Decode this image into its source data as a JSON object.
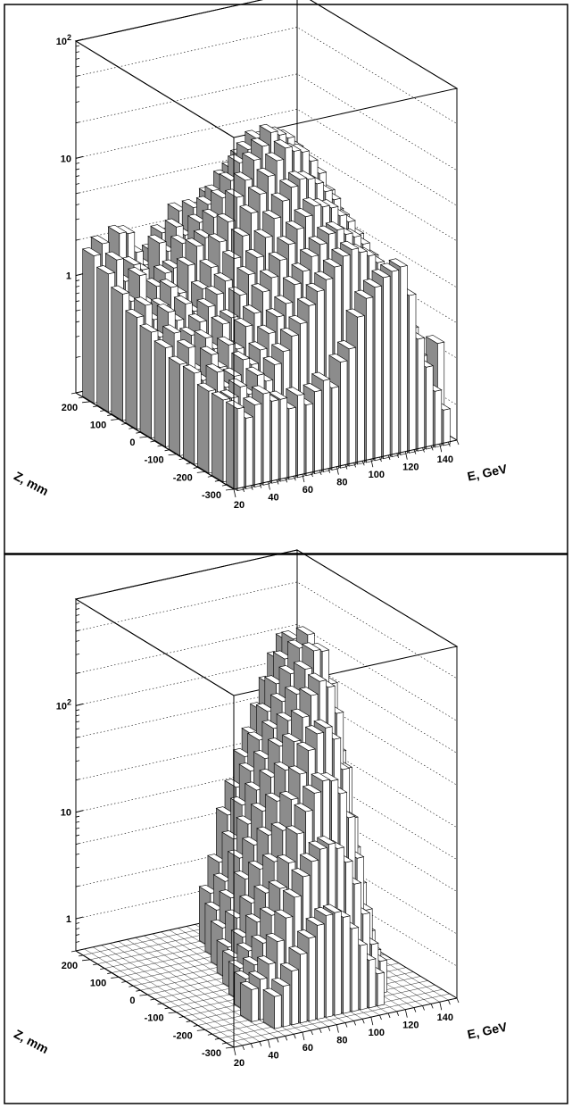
{
  "chart_data": [
    {
      "type": "lego3d",
      "panel": "top",
      "z_scale": "log",
      "xlabel": "E, GeV",
      "ylabel": "Z, mm",
      "x_ticks": [
        "20",
        "40",
        "60",
        "80",
        "100",
        "120",
        "140"
      ],
      "y_ticks": [
        "-300",
        "-200",
        "-100",
        "0",
        "100",
        "200"
      ],
      "z_ticks": [
        {
          "value": 1,
          "mant": "1",
          "exp": ""
        },
        {
          "value": 10,
          "mant": "10",
          "exp": ""
        },
        {
          "value": 100,
          "mant": "10",
          "exp": "2"
        }
      ],
      "xlim": [
        20,
        150
      ],
      "ylim": [
        -300,
        250
      ],
      "zlim": [
        0.1,
        100
      ],
      "grid": true,
      "legend": "none",
      "colors": {
        "bar_front": "#ffffff",
        "bar_side": "#8c8c8c",
        "bar_top": "#ffffff",
        "edge": "#000000"
      },
      "rows": [
        {
          "z": 210,
          "values": [
            1.8,
            2.2,
            1.3,
            2.5,
            2.4,
            1.6,
            1.2,
            1.5,
            2.1,
            1.9,
            3.0,
            2.4,
            2.0,
            1.6,
            1.8,
            2.2,
            2.8,
            3.4,
            3.0,
            2.5,
            2.0,
            1.6,
            1.2,
            0.0,
            0.0,
            0.0
          ]
        },
        {
          "z": 160,
          "values": [
            1.5,
            1.9,
            1.2,
            1.6,
            1.4,
            1.0,
            2.2,
            1.8,
            2.8,
            2.3,
            3.8,
            3.5,
            4.5,
            3.2,
            3.6,
            4.8,
            4.4,
            5.5,
            4.8,
            3.8,
            2.6,
            1.8,
            1.3,
            0.8,
            0.0,
            0.0
          ]
        },
        {
          "z": 110,
          "values": [
            1.2,
            1.0,
            1.6,
            0.9,
            1.2,
            1.5,
            1.6,
            2.5,
            2.2,
            3.5,
            4.8,
            5.8,
            7.5,
            8.5,
            10.5,
            9.5,
            10.8,
            9.0,
            8.0,
            5.5,
            3.5,
            2.4,
            1.6,
            1.0,
            0.5,
            0.0
          ]
        },
        {
          "z": 60,
          "values": [
            0.9,
            1.1,
            0.8,
            1.0,
            1.4,
            1.2,
            2.0,
            2.8,
            3.2,
            4.6,
            6.5,
            8.8,
            12.0,
            15.0,
            18.0,
            17.0,
            16.0,
            14.0,
            10.5,
            7.5,
            5.0,
            3.0,
            1.8,
            1.2,
            0.6,
            0.0
          ]
        },
        {
          "z": 10,
          "values": [
            0.8,
            0.7,
            1.1,
            0.9,
            1.2,
            1.0,
            1.5,
            2.2,
            3.5,
            5.0,
            7.8,
            10.5,
            15.0,
            19.0,
            24.0,
            22.0,
            20.0,
            16.0,
            12.0,
            8.0,
            5.5,
            3.5,
            2.0,
            1.3,
            0.7,
            0.0
          ]
        },
        {
          "z": -40,
          "values": [
            0.7,
            0.9,
            0.6,
            0.8,
            1.0,
            1.3,
            1.6,
            2.0,
            3.0,
            4.5,
            6.8,
            9.5,
            13.0,
            17.0,
            21.0,
            19.0,
            18.0,
            14.5,
            11.0,
            7.5,
            5.0,
            3.2,
            1.8,
            1.1,
            0.6,
            0.0
          ]
        },
        {
          "z": -90,
          "values": [
            0.6,
            0.8,
            0.5,
            0.9,
            0.7,
            1.1,
            1.2,
            1.8,
            2.6,
            3.5,
            5.0,
            7.0,
            9.5,
            12.0,
            13.5,
            13.0,
            11.5,
            9.5,
            7.8,
            5.5,
            3.8,
            2.3,
            1.5,
            0.9,
            0.5,
            0.0
          ]
        },
        {
          "z": -140,
          "values": [
            0.6,
            0.5,
            0.8,
            0.6,
            0.9,
            0.8,
            1.2,
            1.5,
            2.2,
            2.8,
            3.8,
            5.0,
            6.5,
            8.0,
            9.5,
            9.0,
            8.5,
            7.0,
            6.0,
            4.5,
            3.0,
            2.0,
            1.3,
            0.8,
            0.4,
            0.0
          ]
        },
        {
          "z": -190,
          "values": [
            0.5,
            0.7,
            0.5,
            0.6,
            0.8,
            0.7,
            0.9,
            1.2,
            1.6,
            2.0,
            2.8,
            3.5,
            4.5,
            5.5,
            6.5,
            6.8,
            6.0,
            5.5,
            4.6,
            3.5,
            2.5,
            1.6,
            1.0,
            0.6,
            0.0,
            0.0
          ]
        },
        {
          "z": -240,
          "values": [
            0.5,
            0.5,
            0.6,
            0.5,
            0.7,
            0.6,
            0.8,
            1.0,
            1.3,
            1.6,
            2.2,
            2.8,
            3.4,
            4.2,
            5.0,
            5.5,
            5.0,
            4.5,
            3.8,
            3.0,
            2.2,
            1.4,
            0.9,
            0.5,
            0.0,
            0.6
          ]
        },
        {
          "z": -290,
          "values": [
            0.5,
            0.4,
            0.5,
            0.6,
            0.5,
            0.5,
            0.4,
            0.5,
            0.4,
            0.5,
            0.6,
            0.5,
            0.8,
            1.0,
            1.8,
            2.5,
            3.0,
            3.5,
            3.8,
            4.0,
            2.2,
            0.9,
            0.5,
            0.3,
            0.2,
            0.0
          ]
        }
      ]
    },
    {
      "type": "lego3d",
      "panel": "bottom",
      "z_scale": "log",
      "xlabel": "E, GeV",
      "ylabel": "Z, mm",
      "x_ticks": [
        "20",
        "40",
        "60",
        "80",
        "100",
        "120",
        "140"
      ],
      "y_ticks": [
        "-300",
        "-200",
        "-100",
        "0",
        "100",
        "200"
      ],
      "z_ticks": [
        {
          "value": 1,
          "mant": "1",
          "exp": ""
        },
        {
          "value": 10,
          "mant": "10",
          "exp": ""
        },
        {
          "value": 100,
          "mant": "10",
          "exp": "2"
        }
      ],
      "xlim": [
        20,
        150
      ],
      "ylim": [
        -300,
        250
      ],
      "zlim": [
        0.5,
        1000
      ],
      "grid": true,
      "legend": "none",
      "colors": {
        "bar_front": "#ffffff",
        "bar_side": "#8c8c8c",
        "bar_top": "#ffffff",
        "edge": "#000000"
      },
      "rows": [
        {
          "z": 210,
          "values": [
            0,
            0,
            0,
            0,
            0,
            0,
            0,
            0,
            0,
            0,
            0,
            0,
            0,
            0,
            0,
            0,
            0,
            0,
            0,
            0,
            0,
            0,
            0,
            0,
            0,
            0
          ]
        },
        {
          "z": 160,
          "values": [
            0,
            0,
            0,
            0,
            0,
            0,
            0,
            0,
            0,
            0,
            0,
            0,
            1.6,
            3.0,
            8.0,
            14.0,
            26.0,
            40.0,
            65.0,
            110.0,
            180.0,
            260.0,
            160.0,
            40.0,
            4.0,
            0
          ]
        },
        {
          "z": 110,
          "values": [
            0,
            0,
            0,
            0,
            0,
            0,
            0,
            0,
            0,
            0,
            0,
            1.4,
            2.5,
            6.0,
            12.0,
            24.0,
            45.0,
            80.0,
            140.0,
            230.0,
            340.0,
            220.0,
            60.0,
            6.0,
            1.2,
            0
          ]
        },
        {
          "z": 60,
          "values": [
            0,
            0,
            0,
            0,
            0,
            0,
            0,
            0,
            0,
            0,
            1.2,
            2.2,
            5.0,
            10.0,
            20.0,
            38.0,
            70.0,
            120.0,
            210.0,
            350.0,
            450.0,
            300.0,
            80.0,
            8.0,
            1.5,
            0
          ]
        },
        {
          "z": 10,
          "values": [
            0,
            0,
            0,
            0,
            0,
            0,
            0,
            0,
            0,
            1.0,
            1.8,
            4.0,
            8.0,
            16.0,
            32.0,
            60.0,
            100.0,
            170.0,
            280.0,
            400.0,
            380.0,
            180.0,
            40.0,
            5.0,
            1.2,
            0
          ]
        },
        {
          "z": -40,
          "values": [
            0,
            0,
            0,
            0,
            0,
            0,
            0,
            0,
            1.0,
            1.5,
            3.0,
            6.0,
            12.0,
            24.0,
            45.0,
            80.0,
            130.0,
            200.0,
            260.0,
            220.0,
            120.0,
            35.0,
            6.0,
            1.5,
            0,
            0
          ]
        },
        {
          "z": -90,
          "values": [
            0,
            0,
            0,
            0,
            0,
            0,
            0,
            1.0,
            1.4,
            2.5,
            4.5,
            8.5,
            16.0,
            30.0,
            50.0,
            80.0,
            110.0,
            120.0,
            90.0,
            45.0,
            15.0,
            3.5,
            1.2,
            0,
            0,
            0
          ]
        },
        {
          "z": -140,
          "values": [
            0,
            0,
            0,
            0,
            0,
            0,
            1.0,
            1.3,
            2.0,
            3.5,
            6.0,
            10.0,
            18.0,
            28.0,
            40.0,
            50.0,
            48.0,
            35.0,
            20.0,
            8.0,
            2.5,
            1.0,
            0,
            0,
            0,
            0
          ]
        },
        {
          "z": -190,
          "values": [
            0,
            0,
            0,
            0,
            0,
            1.0,
            1.2,
            1.6,
            2.5,
            4.0,
            6.0,
            9.0,
            12.0,
            15.0,
            16.0,
            14.0,
            10.0,
            6.0,
            3.0,
            1.5,
            1.0,
            0,
            0,
            0,
            0,
            0
          ]
        },
        {
          "z": -240,
          "values": [
            0,
            0,
            0,
            0,
            0,
            0,
            1.0,
            1.2,
            1.6,
            2.2,
            3.0,
            3.8,
            4.5,
            4.6,
            4.0,
            3.0,
            2.0,
            1.4,
            1.0,
            0,
            0,
            0,
            0,
            0,
            0,
            0
          ]
        },
        {
          "z": -290,
          "values": [
            0,
            0,
            0,
            0,
            0,
            0,
            0,
            0,
            0,
            0,
            0,
            0,
            0,
            0,
            0,
            0,
            0,
            0,
            0,
            0,
            0,
            0,
            0,
            0,
            0,
            0
          ]
        }
      ]
    }
  ]
}
